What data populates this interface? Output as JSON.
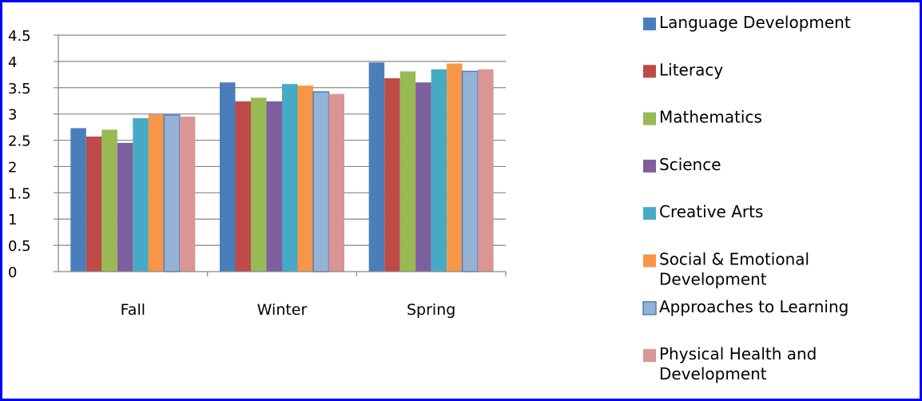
{
  "chart_data": {
    "type": "bar",
    "categories": [
      "Fall",
      "Winter",
      "Spring"
    ],
    "ylim": [
      0,
      4.5
    ],
    "yticks": [
      "0",
      "0.5",
      "1",
      "1.5",
      "2",
      "2.5",
      "3",
      "3.5",
      "4",
      "4.5"
    ],
    "grid": true,
    "legend_position": "right",
    "series": [
      {
        "name": "Language Development",
        "color": "#4a7ebb",
        "values": [
          2.73,
          3.6,
          3.98
        ]
      },
      {
        "name": "Literacy",
        "color": "#be4b48",
        "values": [
          2.57,
          3.24,
          3.68
        ]
      },
      {
        "name": "Mathematics",
        "color": "#98b954",
        "values": [
          2.7,
          3.31,
          3.81
        ]
      },
      {
        "name": "Science",
        "color": "#7d5fa0",
        "values": [
          2.45,
          3.24,
          3.6
        ]
      },
      {
        "name": "Creative Arts",
        "color": "#46aac5",
        "values": [
          2.92,
          3.57,
          3.85
        ]
      },
      {
        "name": "Social & Emotional Development",
        "color": "#f79646",
        "values": [
          2.99,
          3.54,
          3.96
        ]
      },
      {
        "name": "Approaches to Learning",
        "color": "#95b3d7",
        "border": "#4a7ebb",
        "values": [
          2.98,
          3.42,
          3.81
        ]
      },
      {
        "name": "Physical Health and Development",
        "color": "#d99694",
        "values": [
          2.95,
          3.38,
          3.85
        ]
      }
    ]
  }
}
